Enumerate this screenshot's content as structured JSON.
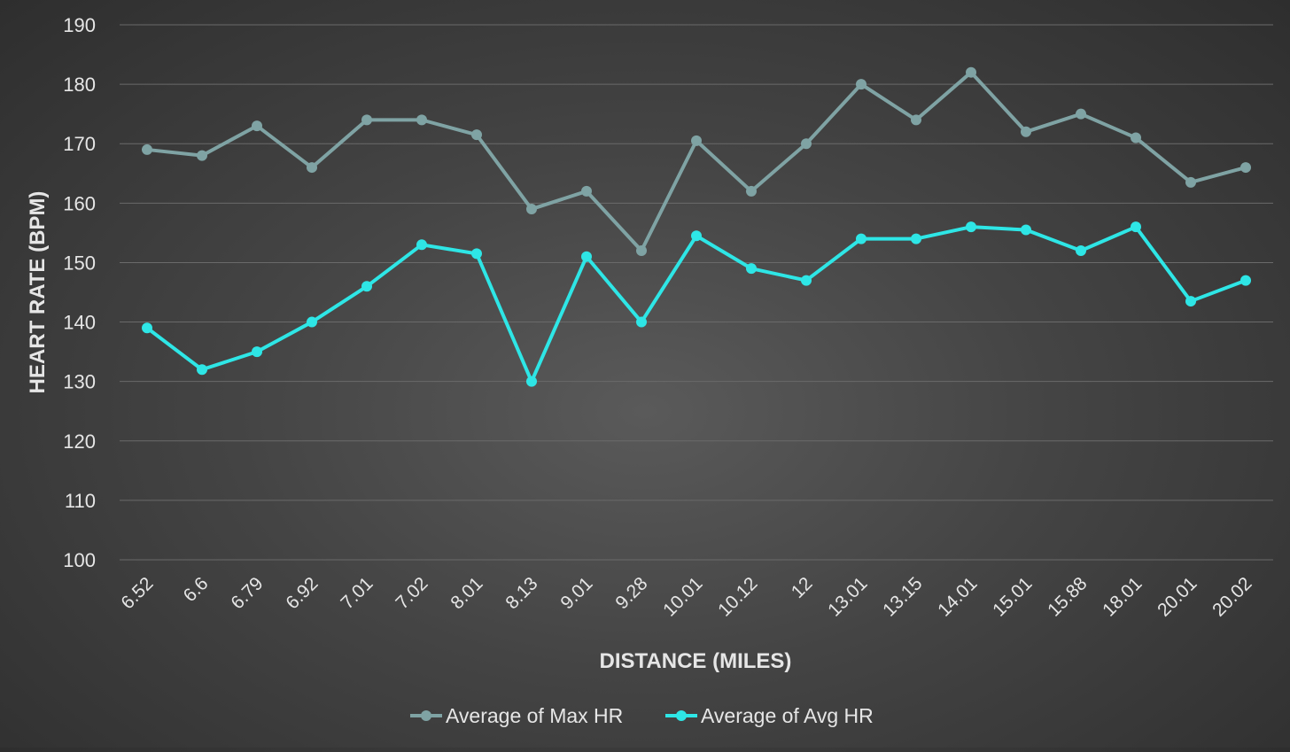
{
  "chart_data": {
    "type": "line",
    "xlabel": "DISTANCE (MILES)",
    "ylabel": "HEART RATE (BPM)",
    "ylim": [
      100,
      190
    ],
    "yticks": [
      100,
      110,
      120,
      130,
      140,
      150,
      160,
      170,
      180,
      190
    ],
    "grid": true,
    "legend_position": "bottom",
    "categories": [
      "6.52",
      "6.6",
      "6.79",
      "6.92",
      "7.01",
      "7.02",
      "8.01",
      "8.13",
      "9.01",
      "9.28",
      "10.01",
      "10.12",
      "12",
      "13.01",
      "13.15",
      "14.01",
      "15.01",
      "15.88",
      "18.01",
      "20.01",
      "20.02"
    ],
    "series": [
      {
        "name": "Average of Max HR",
        "color": "#7fa3a4",
        "values": [
          169,
          168,
          173,
          166,
          174,
          174,
          171.5,
          159,
          162,
          152,
          170.5,
          162,
          170,
          180,
          174,
          182,
          172,
          175,
          171,
          163.5,
          166
        ]
      },
      {
        "name": "Average of Avg HR",
        "color": "#2ee6e6",
        "values": [
          139,
          132,
          135,
          140,
          146,
          153,
          151.5,
          130,
          151,
          140,
          154.5,
          149,
          147,
          154,
          154,
          156,
          155.5,
          152,
          156,
          143.5,
          147
        ]
      }
    ]
  }
}
